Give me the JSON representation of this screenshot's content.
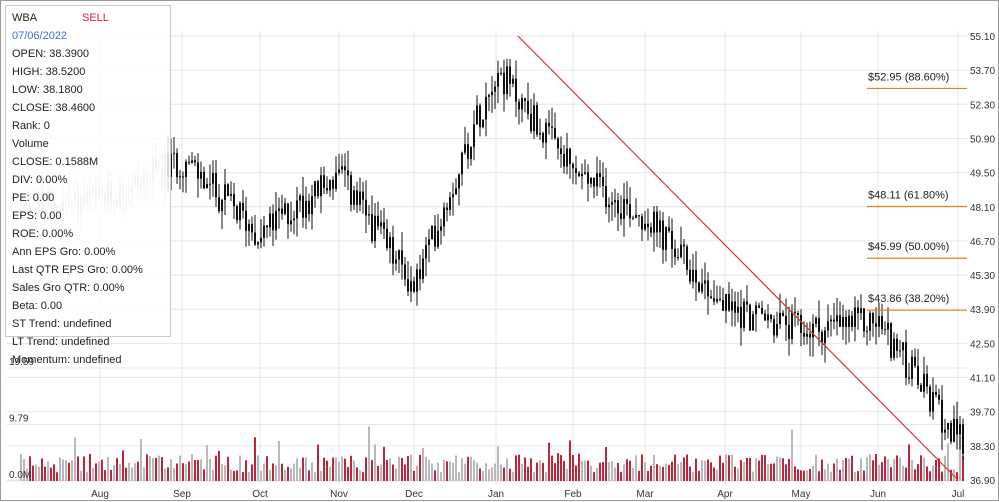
{
  "info": {
    "ticker": "WBA",
    "signal": "SELL",
    "date": "07/06/2022",
    "open": "OPEN: 38.3900",
    "high": "HIGH: 38.5200",
    "low": "LOW: 38.1800",
    "close": "CLOSE: 38.4600",
    "rank": "Rank: 0",
    "volume_label": "Volume",
    "volume_close": "CLOSE: 0.1588M",
    "div": "DIV: 0.00%",
    "pe": "PE: 0.00",
    "eps": "EPS: 0.00",
    "roe": "ROE: 0.00%",
    "ann_eps_gro": "Ann EPS Gro: 0.00%",
    "last_qtr_eps_gro": "Last QTR EPS Gro: 0.00%",
    "sales_gro_qtr": "Sales Gro QTR: 0.00%",
    "beta": "Beta: 0.00",
    "st_trend": "ST Trend: undefined",
    "lt_trend": "LT Trend: undefined",
    "momentum": "Momentum: undefined"
  },
  "colors": {
    "candle": "#111111",
    "candle_faded": "#bcbcbc",
    "volume_up": "#c0243a",
    "volume_down": "#b9b9b9",
    "trendline": "#e0332e",
    "fib_line": "#e8801c",
    "grid": "#e6e6e6"
  },
  "chart_data": {
    "type": "candlestick",
    "ticker": "WBA",
    "x_tick_labels": [
      "Aug",
      "Sep",
      "Oct",
      "Nov",
      "Dec",
      "Jan",
      "Feb",
      "Mar",
      "Apr",
      "May",
      "Jun",
      "Jul"
    ],
    "price_axis": {
      "ticks": [
        "55.10",
        "53.70",
        "52.30",
        "50.90",
        "49.50",
        "48.10",
        "46.70",
        "45.30",
        "43.90",
        "42.50",
        "41.10",
        "39.70",
        "38.30",
        "36.90"
      ],
      "range": [
        36.9,
        55.1
      ]
    },
    "volume_axis": {
      "ticks": [
        "19.59",
        "9.79",
        "0.0M"
      ],
      "range": [
        0,
        19.59
      ]
    },
    "fibonacci_levels": [
      {
        "price": 52.95,
        "label": "$52.95 (88.60%)"
      },
      {
        "price": 48.11,
        "label": "$48.11 (61.80%)"
      },
      {
        "price": 45.99,
        "label": "$45.99 (50.00%)"
      },
      {
        "price": 43.86,
        "label": "$43.86 (38.20%)"
      }
    ],
    "trendline": {
      "start": {
        "month": "Jan",
        "price": 55.1
      },
      "end": {
        "month": "Jul",
        "price": 36.9
      }
    },
    "price_anchors": [
      {
        "month": "Jul",
        "close": 48.2
      },
      {
        "month": "Aug",
        "close": 48.3
      },
      {
        "month": "Sep",
        "close": 50.0
      },
      {
        "month": "Oct",
        "close": 47.0
      },
      {
        "month": "Nov",
        "close": 49.4
      },
      {
        "month": "Dec",
        "close": 44.8
      },
      {
        "month": "Jan",
        "close": 53.8
      },
      {
        "month": "Feb",
        "close": 49.5
      },
      {
        "month": "Mar",
        "close": 47.7
      },
      {
        "month": "Apr",
        "close": 44.0
      },
      {
        "month": "May",
        "close": 43.0
      },
      {
        "month": "Jun",
        "close": 43.4
      },
      {
        "month": "Jul",
        "close": 38.5
      }
    ],
    "grid": true
  }
}
